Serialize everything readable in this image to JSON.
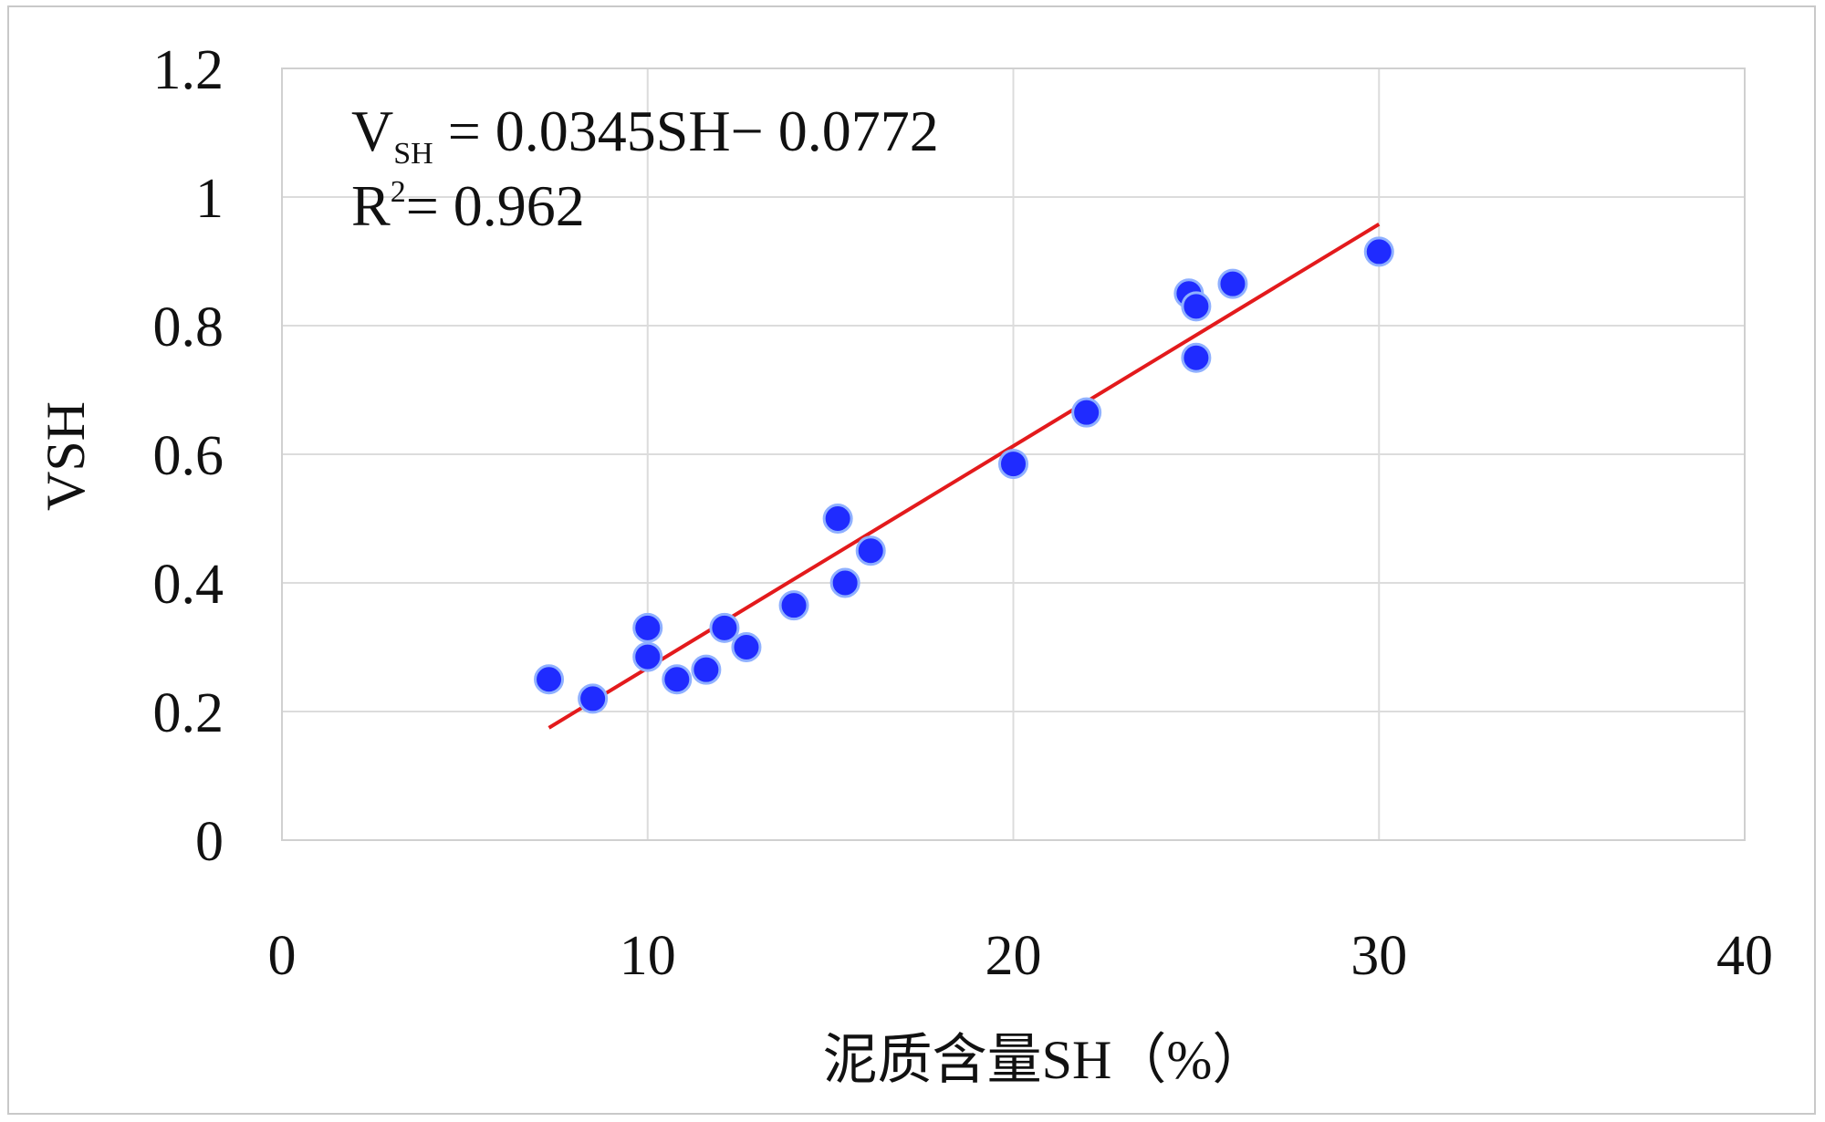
{
  "chart_data": {
    "type": "scatter",
    "xlabel": "泥质含量SH（%）",
    "ylabel": "VSH",
    "xlim": [
      0,
      40
    ],
    "ylim": [
      0,
      1.2
    ],
    "x_ticks": [
      0,
      10,
      20,
      30,
      40
    ],
    "y_ticks": [
      0,
      0.2,
      0.4,
      0.6,
      0.8,
      1,
      1.2
    ],
    "x_tick_labels": [
      "0",
      "10",
      "20",
      "30",
      "40"
    ],
    "y_tick_labels": [
      "0",
      "0.2",
      "0.4",
      "0.6",
      "0.8",
      "1",
      "1.2"
    ],
    "grid": true,
    "point_color": "#1f2bff",
    "line_color": "#e31a1c",
    "points": [
      {
        "x": 7.3,
        "y": 0.25
      },
      {
        "x": 8.5,
        "y": 0.22
      },
      {
        "x": 10.0,
        "y": 0.33
      },
      {
        "x": 10.0,
        "y": 0.285
      },
      {
        "x": 10.8,
        "y": 0.25
      },
      {
        "x": 11.6,
        "y": 0.265
      },
      {
        "x": 12.1,
        "y": 0.33
      },
      {
        "x": 12.7,
        "y": 0.3
      },
      {
        "x": 14.0,
        "y": 0.365
      },
      {
        "x": 15.2,
        "y": 0.5
      },
      {
        "x": 15.4,
        "y": 0.4
      },
      {
        "x": 16.1,
        "y": 0.45
      },
      {
        "x": 20.0,
        "y": 0.585
      },
      {
        "x": 22.0,
        "y": 0.665
      },
      {
        "x": 24.8,
        "y": 0.85
      },
      {
        "x": 25.0,
        "y": 0.83
      },
      {
        "x": 25.0,
        "y": 0.75
      },
      {
        "x": 26.0,
        "y": 0.865
      },
      {
        "x": 30.0,
        "y": 0.915
      }
    ],
    "trendline": {
      "slope": 0.0345,
      "intercept": -0.0772,
      "x_start": 7.3,
      "x_end": 30.0
    },
    "annotations": {
      "equation_main": "V",
      "equation_sub": "SH",
      "equation_rest": " = 0.0345SH− 0.0772",
      "r2_main": "R",
      "r2_sup": "2",
      "r2_rest": "= 0.962"
    }
  }
}
